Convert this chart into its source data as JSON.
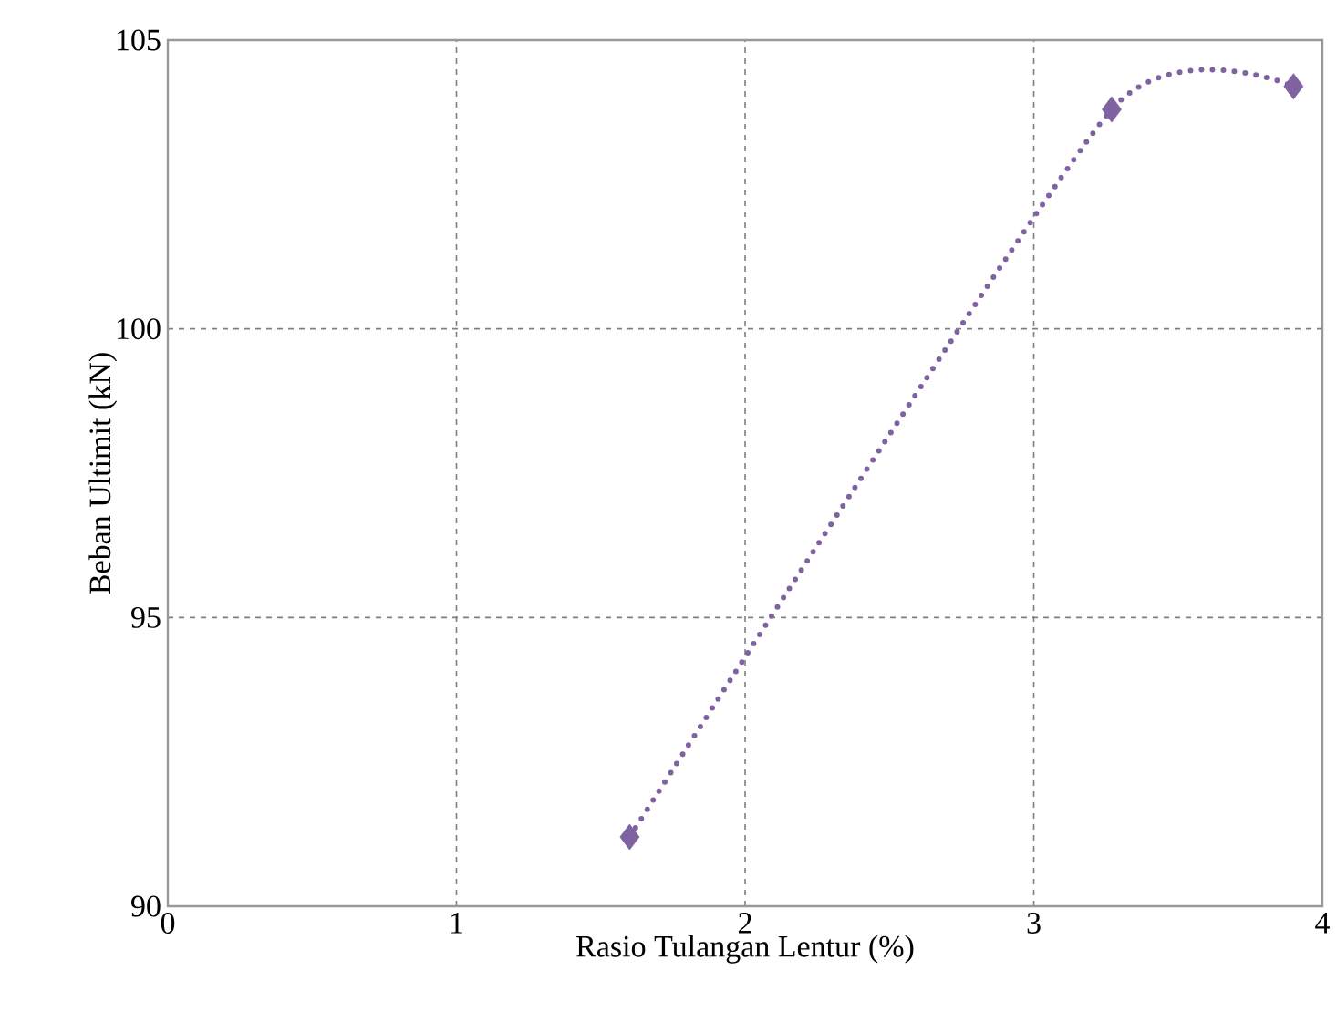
{
  "chart_data": {
    "type": "line",
    "xlabel": "Rasio Tulangan Lentur (%)",
    "ylabel": "Beban Ultimit (kN)",
    "x": [
      1.6,
      3.27,
      3.9
    ],
    "series": [
      {
        "color": "#7f63a0",
        "values": [
          91.2,
          103.8,
          104.2
        ]
      }
    ],
    "xlim": [
      0,
      4
    ],
    "xticks": [
      0,
      1,
      2,
      3,
      4
    ],
    "ylim": [
      90,
      105
    ],
    "yticks": [
      90,
      95,
      100,
      105
    ],
    "grid": true,
    "marker": "diamond",
    "line_style": "dotted"
  }
}
